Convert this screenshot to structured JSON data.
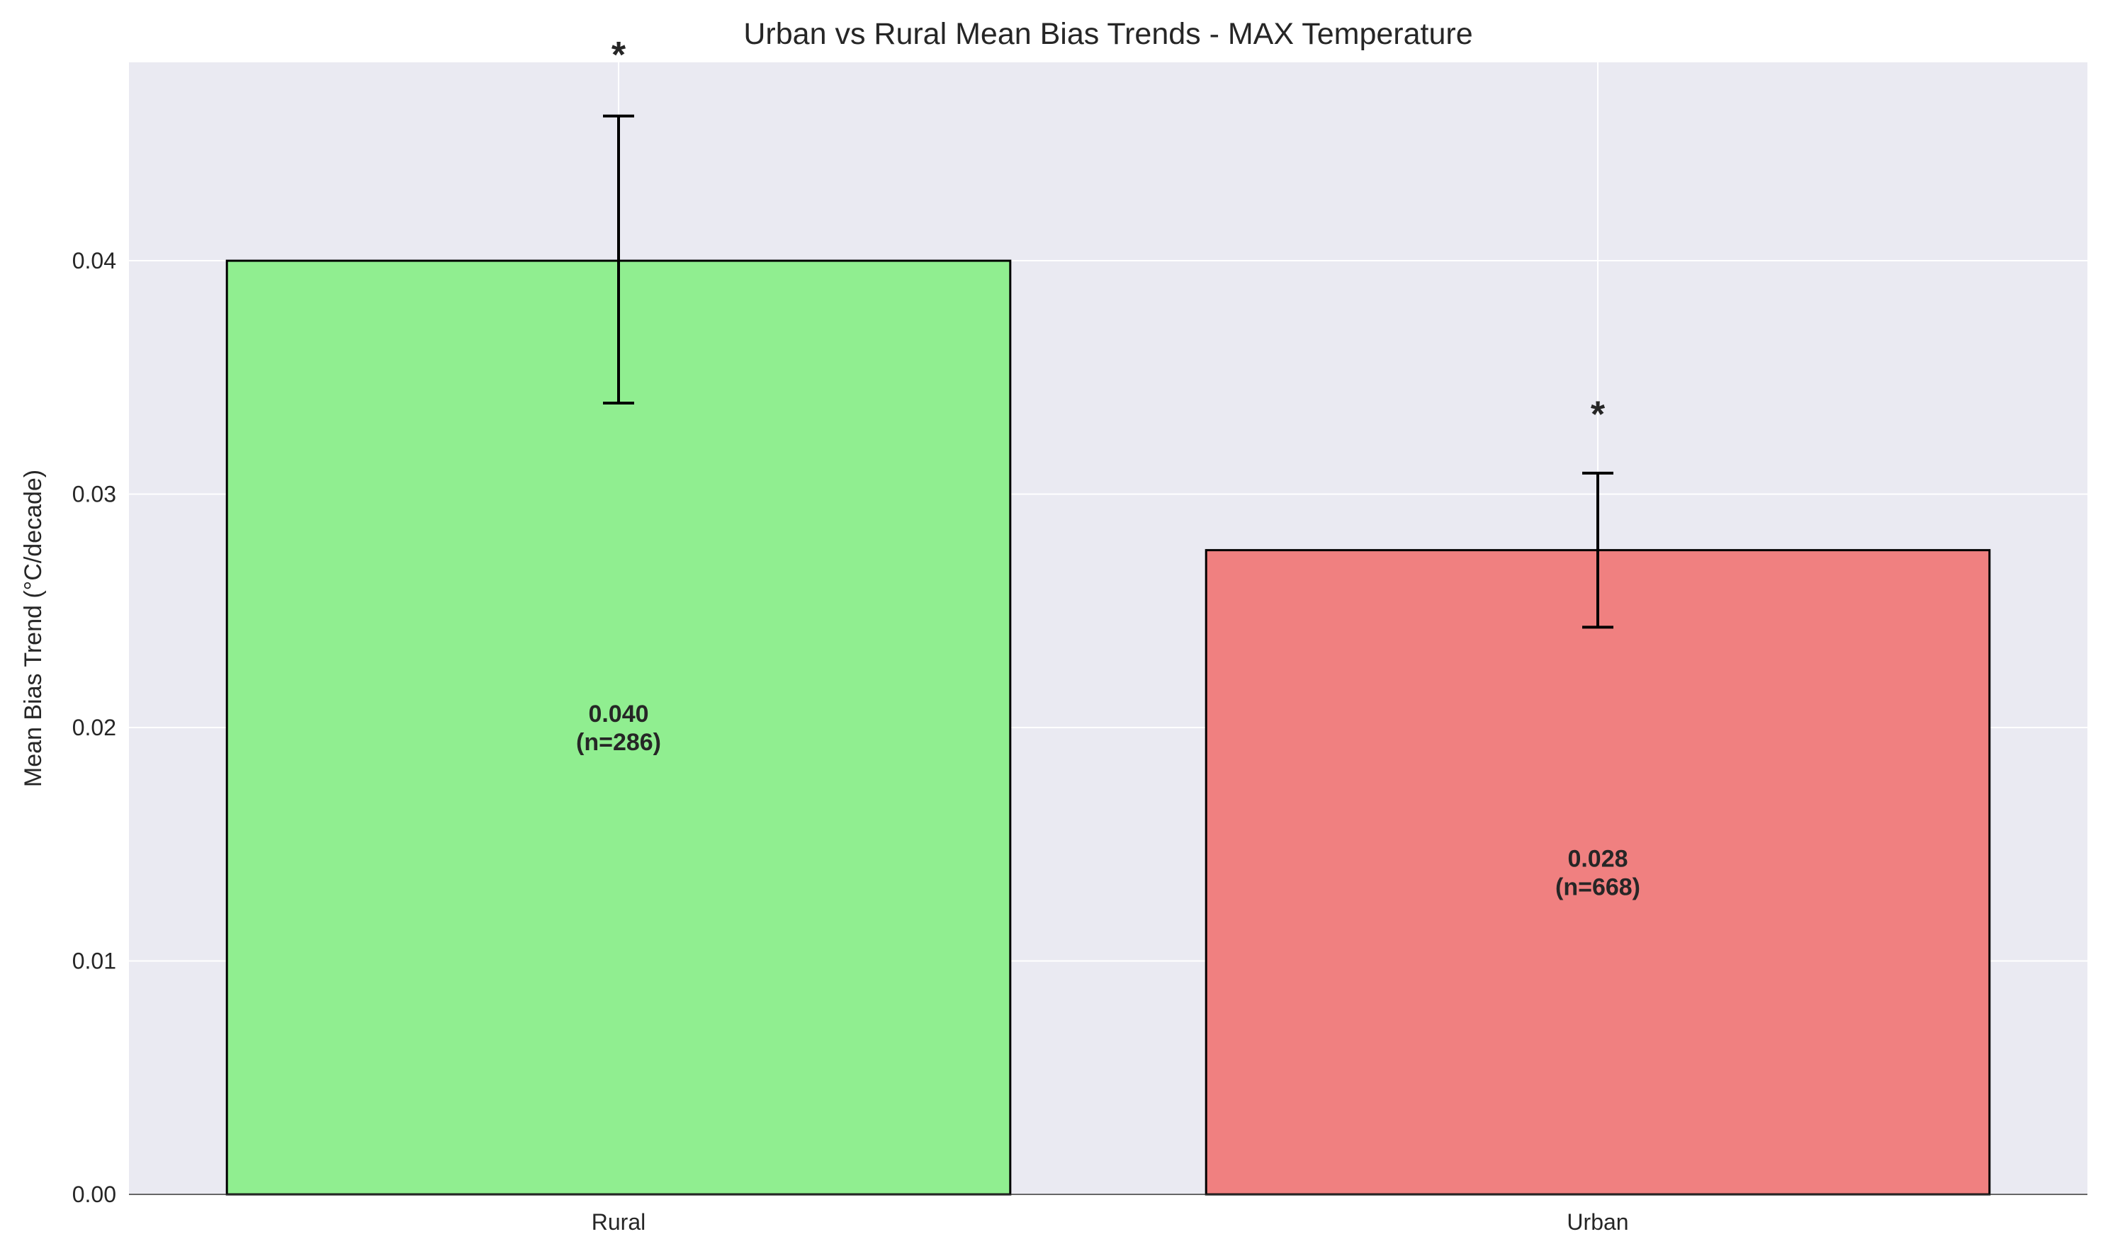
{
  "chart_data": {
    "type": "bar",
    "title": "Urban vs Rural Mean Bias Trends - MAX Temperature",
    "xlabel": "",
    "ylabel": "Mean Bias Trend (°C/decade)",
    "categories": [
      "Rural",
      "Urban"
    ],
    "values": [
      0.04,
      0.0276
    ],
    "error_low": [
      0.0339,
      0.0243
    ],
    "error_high": [
      0.0462,
      0.0309
    ],
    "bar_labels": [
      {
        "value": "0.040",
        "n": "(n=286)"
      },
      {
        "value": "0.028",
        "n": "(n=668)"
      }
    ],
    "significance_markers": [
      "*",
      "*"
    ],
    "significance_positions": [
      0.0492,
      0.0338
    ],
    "colors": [
      "#90EE90",
      "#F08080"
    ],
    "edge_color": "#000000",
    "yticks": [
      "0.00",
      "0.01",
      "0.02",
      "0.03",
      "0.04"
    ],
    "ytick_values": [
      0.0,
      0.01,
      0.02,
      0.03,
      0.04
    ],
    "ylim": [
      0,
      0.0485
    ],
    "grid": true,
    "background": "#EAEAF2",
    "legend": "none"
  }
}
